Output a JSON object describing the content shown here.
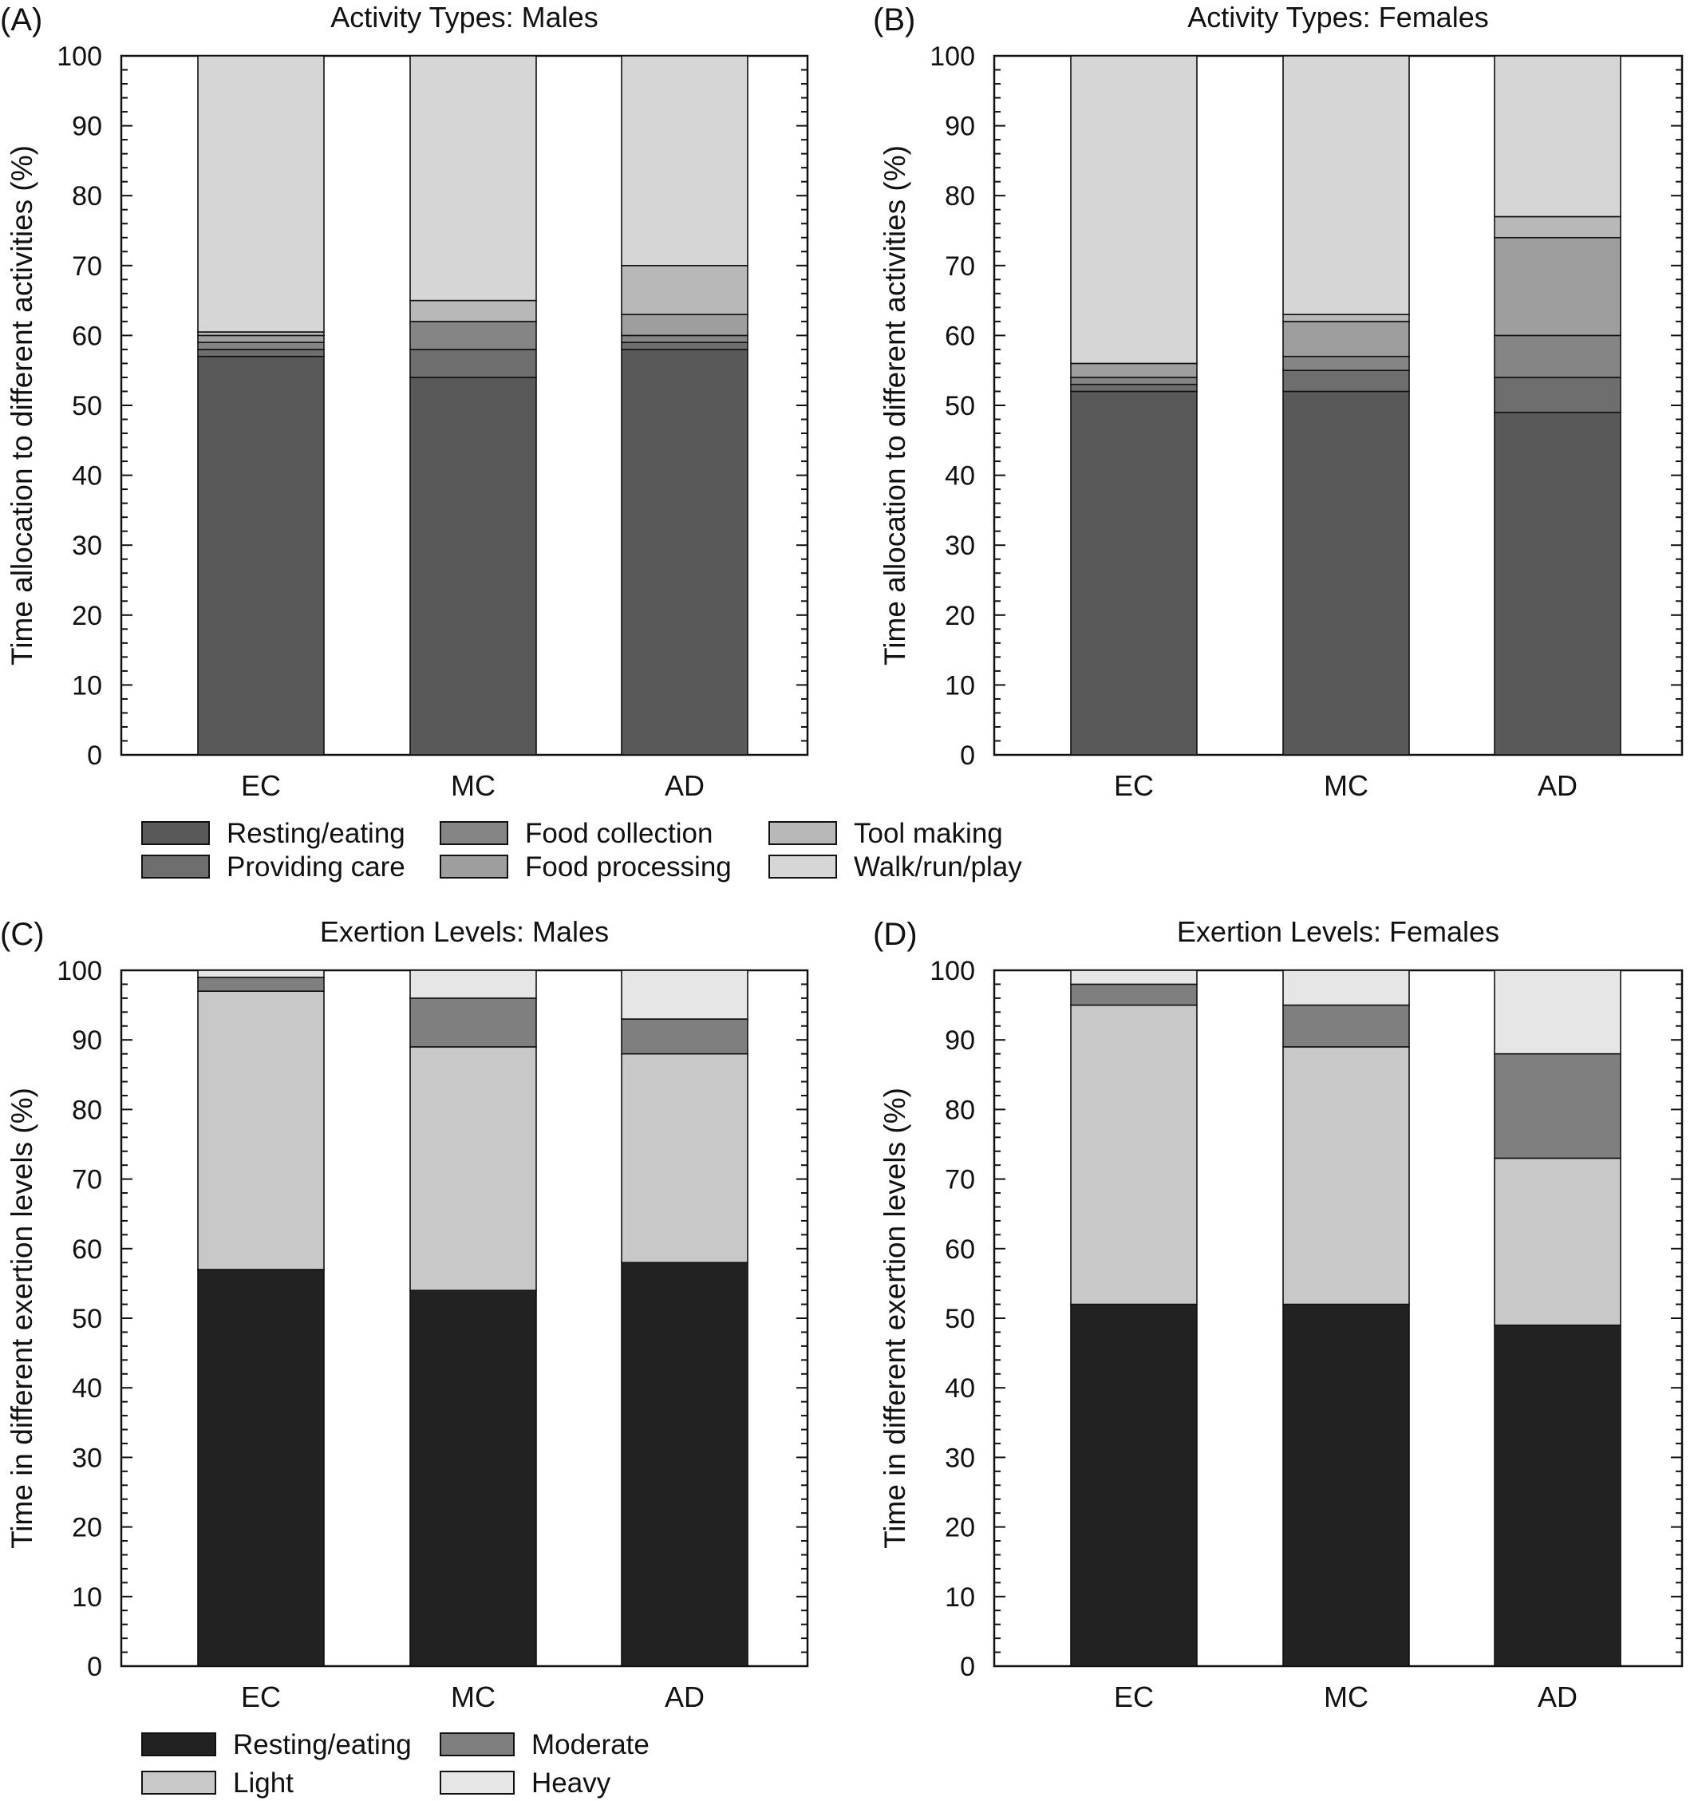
{
  "chart_data": [
    {
      "panel": "(A)",
      "type": "bar",
      "stacked": true,
      "title": "Activity Types: Males",
      "ylabel": "Time allocation to different activities (%)",
      "xlabel": "",
      "ylim": [
        0,
        100
      ],
      "yticks": [
        "0",
        "10",
        "20",
        "30",
        "40",
        "50",
        "60",
        "70",
        "80",
        "90",
        "100"
      ],
      "categories": [
        "EC",
        "MC",
        "AD"
      ],
      "series": [
        {
          "name": "Resting/eating",
          "color": "#595959",
          "values": [
            57,
            54,
            58
          ]
        },
        {
          "name": "Providing care",
          "color": "#6e6e6e",
          "values": [
            1,
            4,
            1
          ]
        },
        {
          "name": "Food collection",
          "color": "#858585",
          "values": [
            1,
            4,
            1
          ]
        },
        {
          "name": "Food processing",
          "color": "#9e9e9e",
          "values": [
            1,
            0,
            3
          ]
        },
        {
          "name": "Tool making",
          "color": "#b8b8b8",
          "values": [
            0.5,
            3,
            7
          ]
        },
        {
          "name": "Walk/run/play",
          "color": "#d6d6d6",
          "values": [
            39.5,
            35,
            30
          ]
        }
      ]
    },
    {
      "panel": "(B)",
      "type": "bar",
      "stacked": true,
      "title": "Activity Types: Females",
      "ylabel": "Time allocation to different activities (%)",
      "xlabel": "",
      "ylim": [
        0,
        100
      ],
      "yticks": [
        "0",
        "10",
        "20",
        "30",
        "40",
        "50",
        "60",
        "70",
        "80",
        "90",
        "100"
      ],
      "categories": [
        "EC",
        "MC",
        "AD"
      ],
      "series": [
        {
          "name": "Resting/eating",
          "color": "#595959",
          "values": [
            52,
            52,
            49
          ]
        },
        {
          "name": "Providing care",
          "color": "#6e6e6e",
          "values": [
            1,
            3,
            5
          ]
        },
        {
          "name": "Food collection",
          "color": "#858585",
          "values": [
            1,
            2,
            6
          ]
        },
        {
          "name": "Food processing",
          "color": "#9e9e9e",
          "values": [
            2,
            5,
            14
          ]
        },
        {
          "name": "Tool making",
          "color": "#b8b8b8",
          "values": [
            0,
            1,
            3
          ]
        },
        {
          "name": "Walk/run/play",
          "color": "#d6d6d6",
          "values": [
            44,
            37,
            23
          ]
        }
      ]
    },
    {
      "panel": "(C)",
      "type": "bar",
      "stacked": true,
      "title": "Exertion Levels: Males",
      "ylabel": "Time in different exertion levels (%)",
      "xlabel": "",
      "ylim": [
        0,
        100
      ],
      "yticks": [
        "0",
        "10",
        "20",
        "30",
        "40",
        "50",
        "60",
        "70",
        "80",
        "90",
        "100"
      ],
      "categories": [
        "EC",
        "MC",
        "AD"
      ],
      "series": [
        {
          "name": "Resting/eating",
          "color": "#222222",
          "values": [
            57,
            54,
            58
          ]
        },
        {
          "name": "Light",
          "color": "#c8c8c8",
          "values": [
            40,
            35,
            30
          ]
        },
        {
          "name": "Moderate",
          "color": "#7f7f7f",
          "values": [
            2,
            7,
            5
          ]
        },
        {
          "name": "Heavy",
          "color": "#e6e6e6",
          "values": [
            1,
            4,
            7
          ]
        }
      ]
    },
    {
      "panel": "(D)",
      "type": "bar",
      "stacked": true,
      "title": "Exertion Levels: Females",
      "ylabel": "Time in different exertion levels (%)",
      "xlabel": "",
      "ylim": [
        0,
        100
      ],
      "yticks": [
        "0",
        "10",
        "20",
        "30",
        "40",
        "50",
        "60",
        "70",
        "80",
        "90",
        "100"
      ],
      "categories": [
        "EC",
        "MC",
        "AD"
      ],
      "series": [
        {
          "name": "Resting/eating",
          "color": "#222222",
          "values": [
            52,
            52,
            49
          ]
        },
        {
          "name": "Light",
          "color": "#c8c8c8",
          "values": [
            43,
            37,
            24
          ]
        },
        {
          "name": "Moderate",
          "color": "#7f7f7f",
          "values": [
            3,
            6,
            15
          ]
        },
        {
          "name": "Heavy",
          "color": "#e6e6e6",
          "values": [
            2,
            5,
            12
          ]
        }
      ]
    }
  ]
}
